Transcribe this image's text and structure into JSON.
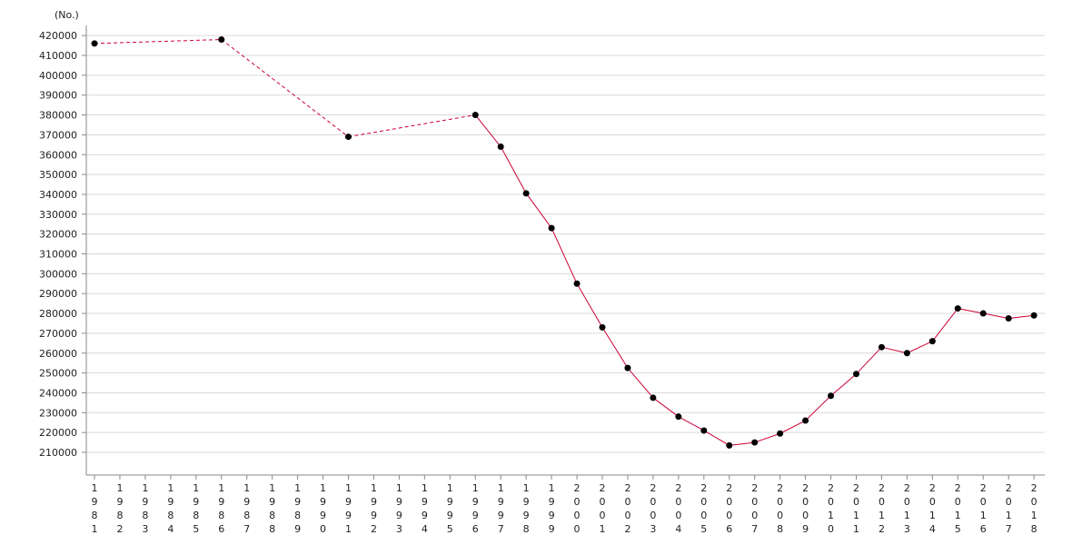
{
  "chart_data": {
    "type": "line",
    "unit_label": "(No.)",
    "title": "",
    "xlabel": "",
    "ylabel": "",
    "grid": true,
    "ylim": [
      200000,
      425000
    ],
    "yticks": [
      210000,
      220000,
      230000,
      240000,
      250000,
      260000,
      270000,
      280000,
      290000,
      300000,
      310000,
      320000,
      330000,
      340000,
      350000,
      360000,
      370000,
      380000,
      390000,
      400000,
      410000,
      420000
    ],
    "categories": [
      "1981",
      "1982",
      "1983",
      "1984",
      "1985",
      "1986",
      "1987",
      "1988",
      "1989",
      "1990",
      "1991",
      "1992",
      "1993",
      "1994",
      "1995",
      "1996",
      "1997",
      "1998",
      "1999",
      "2000",
      "2001",
      "2002",
      "2003",
      "2004",
      "2005",
      "2006",
      "2007",
      "2008",
      "2009",
      "2010",
      "2011",
      "2012",
      "2013",
      "2014",
      "2015",
      "2016",
      "2017",
      "2018"
    ],
    "series": [
      {
        "values": [
          416000,
          null,
          null,
          null,
          null,
          418000,
          null,
          null,
          null,
          null,
          369000,
          null,
          null,
          null,
          null,
          380000,
          364000,
          340500,
          323000,
          295000,
          273000,
          252500,
          237500,
          228000,
          221000,
          213500,
          215000,
          219500,
          226000,
          238500,
          249500,
          263000,
          260000,
          266000,
          282500,
          280000,
          277500,
          279000
        ],
        "line_color": "#cc0033",
        "marker_color": "#000000"
      }
    ]
  }
}
